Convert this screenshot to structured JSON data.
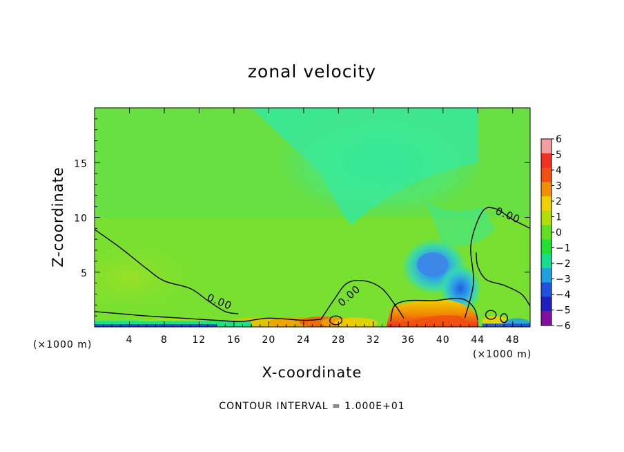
{
  "chart_data": {
    "type": "heatmap",
    "title": "zonal velocity",
    "xlabel": "X-coordinate",
    "ylabel": "Z-coordinate",
    "x_unit_left": "(×1000 m)",
    "x_unit_right": "(×1000 m)",
    "xlim": [
      0,
      50
    ],
    "ylim": [
      0,
      20
    ],
    "x_ticks": [
      "4",
      "8",
      "12",
      "16",
      "20",
      "24",
      "28",
      "32",
      "36",
      "40",
      "44",
      "48"
    ],
    "x_tick_values": [
      4,
      8,
      12,
      16,
      20,
      24,
      28,
      32,
      36,
      40,
      44,
      48
    ],
    "y_ticks": [
      "5",
      "10",
      "15"
    ],
    "y_tick_values": [
      5,
      10,
      15
    ],
    "contour_interval": "CONTOUR INTERVAL = 1.000E+01",
    "contour_labels": [
      "0.00",
      "0.00",
      "0.00"
    ],
    "colorbar": {
      "labels": [
        "6",
        "5",
        "4",
        "3",
        "2",
        "1",
        "0",
        "−1",
        "−2",
        "−3",
        "−4",
        "−5",
        "−6"
      ],
      "colors": [
        "#f4a0a0",
        "#f03020",
        "#f05010",
        "#f09000",
        "#f0d000",
        "#b0e000",
        "#60e020",
        "#20e030",
        "#10e090",
        "#20a0e0",
        "#2050e0",
        "#2020c0",
        "#8010a0"
      ]
    },
    "colors": {
      "field_background": "#78e030",
      "upper_region": "#38e898",
      "negative_core": "#3c88e8",
      "surface_positive": "#f05010",
      "contour": "#000000"
    },
    "features": [
      {
        "kind": "negative-core",
        "x": 39,
        "z": 5.5,
        "value": -3
      },
      {
        "kind": "negative-core",
        "x": 42,
        "z": 3.5,
        "value": -2.5
      },
      {
        "kind": "surface-jet",
        "x": 38,
        "z": 0.5,
        "value": 4
      },
      {
        "kind": "upper-band",
        "x": 30,
        "z": 15,
        "value": -1
      }
    ],
    "contour_zero_left": [
      [
        0,
        8.9
      ],
      [
        3,
        7.2
      ],
      [
        6,
        5.3
      ],
      [
        8,
        4.2
      ],
      [
        11,
        3.5
      ],
      [
        13,
        2.4
      ],
      [
        15,
        1.4
      ],
      [
        16.5,
        1.2
      ]
    ],
    "contour_zero_middle": [
      [
        26,
        0.7
      ],
      [
        27.5,
        2.5
      ],
      [
        29,
        4.0
      ],
      [
        31,
        4.2
      ],
      [
        33,
        3.5
      ],
      [
        34.5,
        2.0
      ],
      [
        35.5,
        0.8
      ]
    ],
    "contour_zero_right": [
      [
        42.5,
        0.8
      ],
      [
        43.5,
        4.0
      ],
      [
        43.2,
        7.5
      ],
      [
        44.5,
        10.5
      ],
      [
        46,
        10.8
      ],
      [
        48,
        9.8
      ],
      [
        50,
        9.0
      ]
    ],
    "contour_zero_right_lower": [
      [
        43.8,
        6.8
      ],
      [
        44,
        5.5
      ],
      [
        45,
        4.3
      ],
      [
        47,
        3.8
      ],
      [
        49,
        3.0
      ],
      [
        50,
        1.9
      ]
    ],
    "contour_near_surface": [
      [
        0,
        1.4
      ],
      [
        3,
        1.2
      ],
      [
        6,
        1.0
      ],
      [
        10,
        0.8
      ],
      [
        14,
        0.6
      ],
      [
        17,
        0.5
      ],
      [
        20,
        0.8
      ],
      [
        24,
        0.6
      ],
      [
        26,
        0.7
      ]
    ]
  }
}
